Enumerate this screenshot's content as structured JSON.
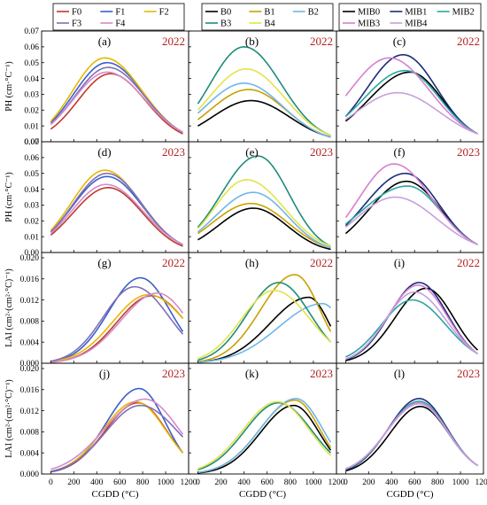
{
  "chart_data": {
    "type": "line",
    "xlabel": "CGDD (°C)",
    "xlim": [
      -80,
      1200
    ],
    "x_ticks": [
      0,
      200,
      400,
      600,
      800,
      1000,
      1200
    ],
    "x_tick_labels": [
      "0",
      "200",
      "400",
      "600",
      "800",
      "1000",
      "1200"
    ],
    "rows": [
      {
        "ylabel": "PH (cm·°C⁻¹)",
        "ylim": [
          0,
          0.07
        ],
        "y_ticks": [
          0,
          0.01,
          0.02,
          0.03,
          0.04,
          0.05,
          0.06,
          0.07
        ],
        "y_tick_labels": [
          "0.00",
          "0.01",
          "0.02",
          "0.03",
          "0.04",
          "0.05",
          "0.06",
          "0.07"
        ]
      },
      {
        "ylabel": "PH (cm·°C⁻¹)",
        "ylim": [
          0,
          0.07
        ],
        "y_ticks": [
          0,
          0.01,
          0.02,
          0.03,
          0.04,
          0.05,
          0.06,
          0.07
        ],
        "y_tick_labels": [
          "0.00",
          "0.01",
          "0.02",
          "0.03",
          "0.04",
          "0.05",
          "0.06",
          "0.07"
        ]
      },
      {
        "ylabel": "LAI (cm²·(cm²·°C)⁻¹)",
        "ylim": [
          0,
          0.021
        ],
        "y_ticks": [
          0,
          0.004,
          0.008,
          0.012,
          0.016,
          0.02
        ],
        "y_tick_labels": [
          "0.000",
          "0.004",
          "0.008",
          "0.012",
          "0.016",
          "0.020"
        ]
      },
      {
        "ylabel": "LAI (cm²·(cm²·°C)⁻¹)",
        "ylim": [
          0,
          0.021
        ],
        "y_ticks": [
          0,
          0.004,
          0.008,
          0.012,
          0.016,
          0.02
        ],
        "y_tick_labels": [
          "0.000",
          "0.004",
          "0.008",
          "0.012",
          "0.016",
          "0.020"
        ]
      }
    ],
    "legends": [
      {
        "entries": [
          {
            "name": "F0",
            "color": "#c0392b"
          },
          {
            "name": "F1",
            "color": "#3a5fcd"
          },
          {
            "name": "F2",
            "color": "#e6b800"
          },
          {
            "name": "F3",
            "color": "#7e6fb8"
          },
          {
            "name": "F4",
            "color": "#d48ac9"
          }
        ]
      },
      {
        "entries": [
          {
            "name": "B0",
            "color": "#000000"
          },
          {
            "name": "B1",
            "color": "#c9a000"
          },
          {
            "name": "B2",
            "color": "#6fb6e8"
          },
          {
            "name": "B3",
            "color": "#1e8c7a"
          },
          {
            "name": "B4",
            "color": "#e3e34a"
          }
        ]
      },
      {
        "entries": [
          {
            "name": "MIB0",
            "color": "#000000"
          },
          {
            "name": "MIB1",
            "color": "#1b2c7a"
          },
          {
            "name": "MIB2",
            "color": "#2aa7a0"
          },
          {
            "name": "MIB3",
            "color": "#d67fcf"
          },
          {
            "name": "MIB4",
            "color": "#c6a0dd"
          }
        ]
      }
    ],
    "panels": [
      {
        "label": "(a)",
        "year": "2022",
        "row": 0,
        "col": 0,
        "series": [
          {
            "color": "#c0392b",
            "peak_x": 520,
            "peak_y": 0.043,
            "start_y": 0.008,
            "end_y": 0.005
          },
          {
            "color": "#3a5fcd",
            "peak_x": 490,
            "peak_y": 0.05,
            "start_y": 0.012,
            "end_y": 0.006
          },
          {
            "color": "#e6b800",
            "peak_x": 470,
            "peak_y": 0.053,
            "start_y": 0.013,
            "end_y": 0.006
          },
          {
            "color": "#7e6fb8",
            "peak_x": 500,
            "peak_y": 0.047,
            "start_y": 0.011,
            "end_y": 0.006
          },
          {
            "color": "#d48ac9",
            "peak_x": 490,
            "peak_y": 0.044,
            "start_y": 0.011,
            "end_y": 0.006
          }
        ]
      },
      {
        "label": "(b)",
        "year": "2022",
        "row": 0,
        "col": 1,
        "series": [
          {
            "color": "#000000",
            "peak_x": 460,
            "peak_y": 0.026,
            "start_y": 0.01,
            "end_y": 0.003
          },
          {
            "color": "#c9a000",
            "peak_x": 440,
            "peak_y": 0.033,
            "start_y": 0.014,
            "end_y": 0.003
          },
          {
            "color": "#6fb6e8",
            "peak_x": 400,
            "peak_y": 0.037,
            "start_y": 0.018,
            "end_y": 0.003
          },
          {
            "color": "#1e8c7a",
            "peak_x": 400,
            "peak_y": 0.06,
            "start_y": 0.024,
            "end_y": 0.004
          },
          {
            "color": "#e3e34a",
            "peak_x": 420,
            "peak_y": 0.046,
            "start_y": 0.02,
            "end_y": 0.004
          }
        ]
      },
      {
        "label": "(c)",
        "year": "2022",
        "row": 0,
        "col": 2,
        "series": [
          {
            "color": "#000000",
            "peak_x": 560,
            "peak_y": 0.044,
            "start_y": 0.013,
            "end_y": 0.005
          },
          {
            "color": "#1b2c7a",
            "peak_x": 500,
            "peak_y": 0.055,
            "start_y": 0.016,
            "end_y": 0.005
          },
          {
            "color": "#2aa7a0",
            "peak_x": 520,
            "peak_y": 0.045,
            "start_y": 0.016,
            "end_y": 0.005
          },
          {
            "color": "#d67fcf",
            "peak_x": 380,
            "peak_y": 0.053,
            "start_y": 0.029,
            "end_y": 0.005
          },
          {
            "color": "#c6a0dd",
            "peak_x": 450,
            "peak_y": 0.031,
            "start_y": 0.014,
            "end_y": 0.005
          }
        ]
      },
      {
        "label": "(d)",
        "year": "2023",
        "row": 1,
        "col": 0,
        "series": [
          {
            "color": "#c0392b",
            "peak_x": 500,
            "peak_y": 0.041,
            "start_y": 0.011,
            "end_y": 0.004
          },
          {
            "color": "#3a5fcd",
            "peak_x": 490,
            "peak_y": 0.048,
            "start_y": 0.013,
            "end_y": 0.005
          },
          {
            "color": "#e6b800",
            "peak_x": 470,
            "peak_y": 0.052,
            "start_y": 0.014,
            "end_y": 0.005
          },
          {
            "color": "#7e6fb8",
            "peak_x": 490,
            "peak_y": 0.05,
            "start_y": 0.013,
            "end_y": 0.005
          },
          {
            "color": "#d48ac9",
            "peak_x": 480,
            "peak_y": 0.043,
            "start_y": 0.012,
            "end_y": 0.005
          }
        ]
      },
      {
        "label": "(e)",
        "year": "2023",
        "row": 1,
        "col": 1,
        "series": [
          {
            "color": "#000000",
            "peak_x": 480,
            "peak_y": 0.028,
            "start_y": 0.008,
            "end_y": 0.002
          },
          {
            "color": "#c9a000",
            "peak_x": 460,
            "peak_y": 0.031,
            "start_y": 0.012,
            "end_y": 0.003
          },
          {
            "color": "#6fb6e8",
            "peak_x": 480,
            "peak_y": 0.038,
            "start_y": 0.013,
            "end_y": 0.003
          },
          {
            "color": "#1e8c7a",
            "peak_x": 520,
            "peak_y": 0.061,
            "start_y": 0.016,
            "end_y": 0.004
          },
          {
            "color": "#e3e34a",
            "peak_x": 420,
            "peak_y": 0.046,
            "start_y": 0.015,
            "end_y": 0.004
          }
        ]
      },
      {
        "label": "(f)",
        "year": "2023",
        "row": 1,
        "col": 2,
        "series": [
          {
            "color": "#000000",
            "peak_x": 530,
            "peak_y": 0.045,
            "start_y": 0.012,
            "end_y": 0.005
          },
          {
            "color": "#1b2c7a",
            "peak_x": 520,
            "peak_y": 0.05,
            "start_y": 0.017,
            "end_y": 0.005
          },
          {
            "color": "#2aa7a0",
            "peak_x": 540,
            "peak_y": 0.042,
            "start_y": 0.018,
            "end_y": 0.005
          },
          {
            "color": "#d67fcf",
            "peak_x": 420,
            "peak_y": 0.056,
            "start_y": 0.022,
            "end_y": 0.005
          },
          {
            "color": "#c6a0dd",
            "peak_x": 430,
            "peak_y": 0.035,
            "start_y": 0.016,
            "end_y": 0.005
          }
        ]
      },
      {
        "label": "(g)",
        "year": "2022",
        "row": 2,
        "col": 0,
        "series": [
          {
            "color": "#c0392b",
            "peak_x": 880,
            "peak_y": 0.0128,
            "start_y": 0.0002,
            "end_y": 0.0085
          },
          {
            "color": "#3a5fcd",
            "peak_x": 780,
            "peak_y": 0.0162,
            "start_y": 0.0003,
            "end_y": 0.006
          },
          {
            "color": "#e6b800",
            "peak_x": 850,
            "peak_y": 0.013,
            "start_y": 0.0003,
            "end_y": 0.0085
          },
          {
            "color": "#7e6fb8",
            "peak_x": 730,
            "peak_y": 0.0145,
            "start_y": 0.0004,
            "end_y": 0.0055
          },
          {
            "color": "#d48ac9",
            "peak_x": 930,
            "peak_y": 0.0133,
            "start_y": 0.0002,
            "end_y": 0.0095
          }
        ]
      },
      {
        "label": "(h)",
        "year": "2022",
        "row": 2,
        "col": 1,
        "series": [
          {
            "color": "#000000",
            "peak_x": 960,
            "peak_y": 0.0125,
            "start_y": 0.0002,
            "end_y": 0.007
          },
          {
            "color": "#c9a000",
            "peak_x": 840,
            "peak_y": 0.0168,
            "start_y": 0.0003,
            "end_y": 0.006
          },
          {
            "color": "#6fb6e8",
            "peak_x": 1080,
            "peak_y": 0.0113,
            "start_y": 0.0002,
            "end_y": 0.0105
          },
          {
            "color": "#1e8c7a",
            "peak_x": 700,
            "peak_y": 0.0153,
            "start_y": 0.0006,
            "end_y": 0.004
          },
          {
            "color": "#e3e34a",
            "peak_x": 660,
            "peak_y": 0.0138,
            "start_y": 0.0009,
            "end_y": 0.004
          }
        ]
      },
      {
        "label": "(i)",
        "year": "2022",
        "row": 2,
        "col": 2,
        "series": [
          {
            "color": "#000000",
            "peak_x": 700,
            "peak_y": 0.0142,
            "start_y": 0.0005,
            "end_y": 0.0025
          },
          {
            "color": "#1b2c7a",
            "peak_x": 640,
            "peak_y": 0.0153,
            "start_y": 0.0007,
            "end_y": 0.0018
          },
          {
            "color": "#2aa7a0",
            "peak_x": 580,
            "peak_y": 0.012,
            "start_y": 0.0012,
            "end_y": 0.0018
          },
          {
            "color": "#d67fcf",
            "peak_x": 630,
            "peak_y": 0.0148,
            "start_y": 0.0008,
            "end_y": 0.0018
          },
          {
            "color": "#c6a0dd",
            "peak_x": 600,
            "peak_y": 0.0135,
            "start_y": 0.0008,
            "end_y": 0.0018
          }
        ]
      },
      {
        "label": "(j)",
        "year": "2023",
        "row": 3,
        "col": 0,
        "series": [
          {
            "color": "#c0392b",
            "peak_x": 760,
            "peak_y": 0.0135,
            "start_y": 0.0004,
            "end_y": 0.004
          },
          {
            "color": "#3a5fcd",
            "peak_x": 770,
            "peak_y": 0.0162,
            "start_y": 0.0004,
            "end_y": 0.004
          },
          {
            "color": "#e6b800",
            "peak_x": 740,
            "peak_y": 0.0137,
            "start_y": 0.0005,
            "end_y": 0.004
          },
          {
            "color": "#7e6fb8",
            "peak_x": 780,
            "peak_y": 0.013,
            "start_y": 0.0005,
            "end_y": 0.007
          },
          {
            "color": "#d48ac9",
            "peak_x": 820,
            "peak_y": 0.0142,
            "start_y": 0.0009,
            "end_y": 0.0075
          }
        ]
      },
      {
        "label": "(k)",
        "year": "2023",
        "row": 3,
        "col": 1,
        "series": [
          {
            "color": "#000000",
            "peak_x": 830,
            "peak_y": 0.013,
            "start_y": 0.0002,
            "end_y": 0.0045
          },
          {
            "color": "#c9a000",
            "peak_x": 840,
            "peak_y": 0.014,
            "start_y": 0.0003,
            "end_y": 0.005
          },
          {
            "color": "#6fb6e8",
            "peak_x": 850,
            "peak_y": 0.0143,
            "start_y": 0.0003,
            "end_y": 0.006
          },
          {
            "color": "#1e8c7a",
            "peak_x": 700,
            "peak_y": 0.0135,
            "start_y": 0.0008,
            "end_y": 0.004
          },
          {
            "color": "#e3e34a",
            "peak_x": 690,
            "peak_y": 0.0137,
            "start_y": 0.001,
            "end_y": 0.0035
          }
        ]
      },
      {
        "label": "(l)",
        "year": "2023",
        "row": 3,
        "col": 2,
        "series": [
          {
            "color": "#000000",
            "peak_x": 650,
            "peak_y": 0.0128,
            "start_y": 0.0006,
            "end_y": 0.0016
          },
          {
            "color": "#1b2c7a",
            "peak_x": 640,
            "peak_y": 0.0143,
            "start_y": 0.0008,
            "end_y": 0.0016
          },
          {
            "color": "#2aa7a0",
            "peak_x": 640,
            "peak_y": 0.0138,
            "start_y": 0.0009,
            "end_y": 0.0016
          },
          {
            "color": "#d67fcf",
            "peak_x": 640,
            "peak_y": 0.0135,
            "start_y": 0.001,
            "end_y": 0.0016
          },
          {
            "color": "#c6a0dd",
            "peak_x": 640,
            "peak_y": 0.0133,
            "start_y": 0.001,
            "end_y": 0.0016
          }
        ]
      }
    ]
  },
  "colors": {
    "panel_label": "#000000",
    "year_label": "#b22222",
    "axis": "#000000"
  }
}
